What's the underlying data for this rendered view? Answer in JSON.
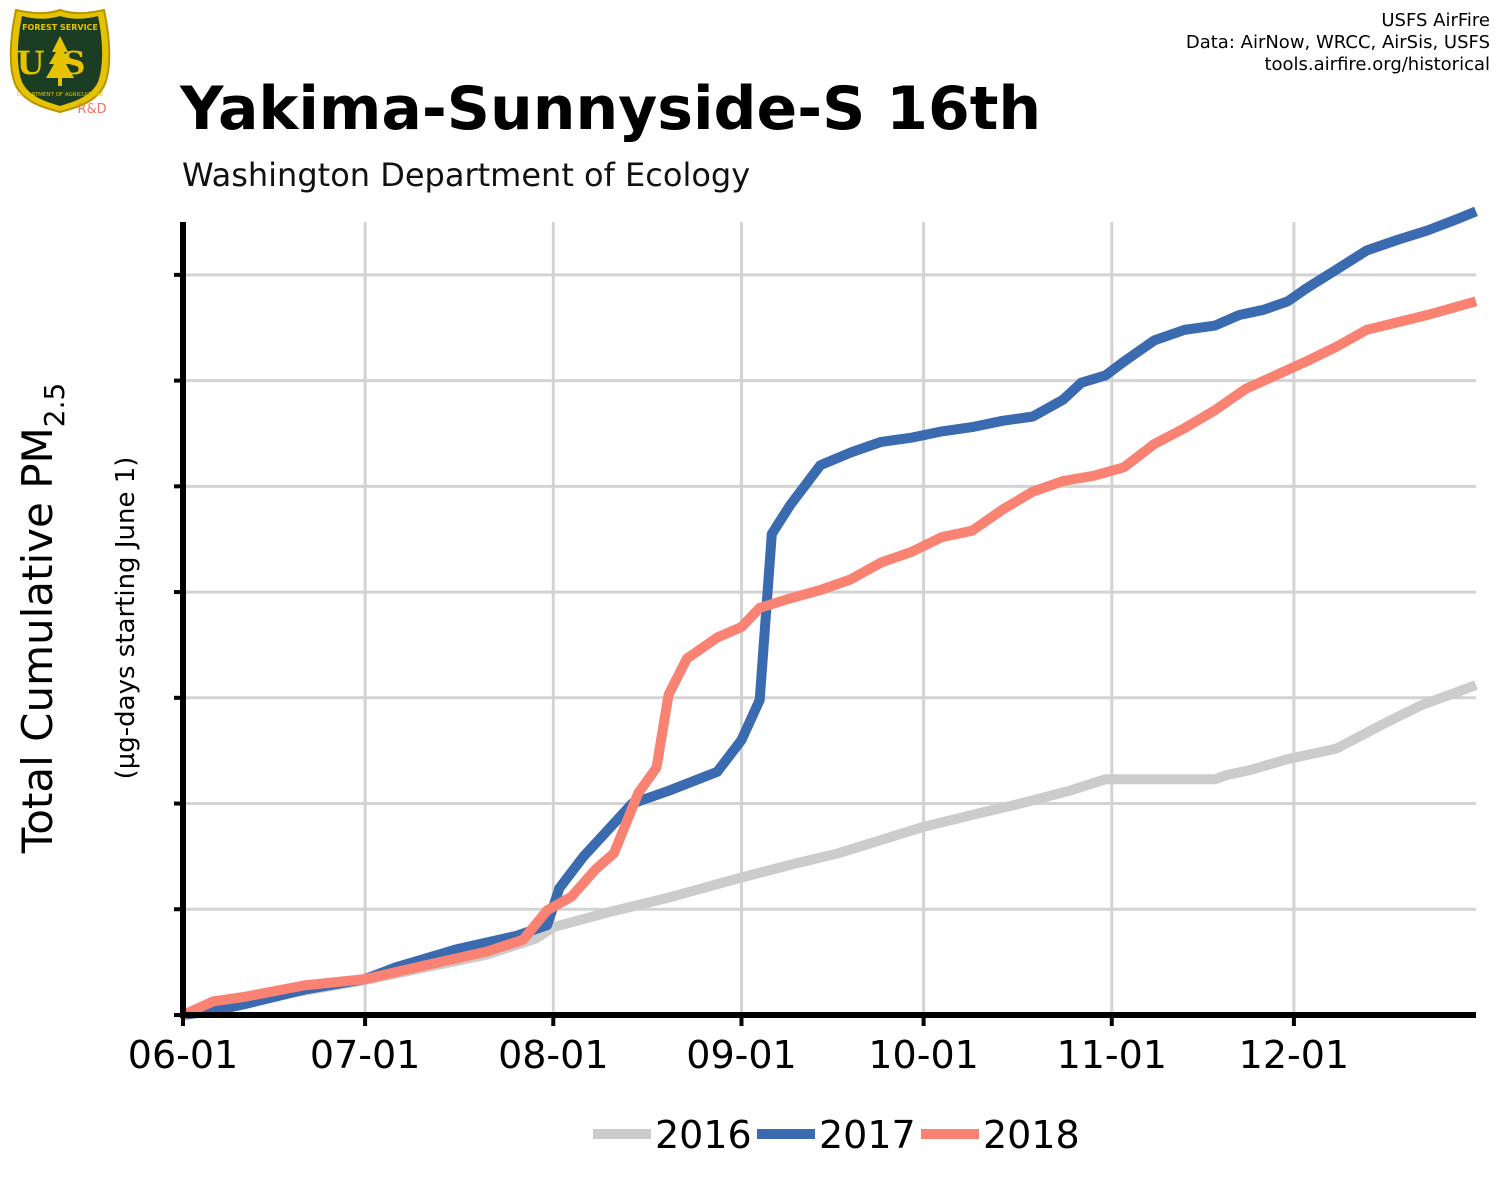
{
  "header": {
    "title": "Yakima-Sunnyside-S 16th",
    "subtitle": "Washington Department of Ecology",
    "credits": [
      "USFS AirFire",
      "Data: AirNow, WRCC, AirSis, USFS",
      "tools.airfire.org/historical"
    ],
    "logo": {
      "top_text": "FOREST SERVICE",
      "letters": "US",
      "bottom_text": "DEPARTMENT OF AGRICULTURE",
      "tag": "R&D"
    }
  },
  "colors": {
    "2016": "#cccccc",
    "2017": "#3a6ab0",
    "2018": "#f98273",
    "logo_shield": "#1a3d24",
    "logo_gold": "#e6c200",
    "logo_tag": "#f4736b"
  },
  "chart_data": {
    "type": "line",
    "ylabel": "Total Cumulative PM",
    "ylabel_sub": "2.5",
    "ylabel2": "(µg-days starting June 1)",
    "x_tick_labels": [
      "06-01",
      "07-01",
      "08-01",
      "09-01",
      "10-01",
      "11-01",
      "12-01"
    ],
    "x_tick_days": [
      0,
      30,
      61,
      92,
      122,
      153,
      183
    ],
    "xlim": [
      0,
      213
    ],
    "ylim": [
      0,
      7.5
    ],
    "y_ticks": [
      0,
      1,
      2,
      3,
      4,
      5,
      6,
      7
    ],
    "y_tick_labels_shown": false,
    "grid": true,
    "legend_position": "bottom",
    "series": [
      {
        "name": "2016",
        "x": [
          0,
          3,
          8,
          15,
          22,
          30,
          40,
          50,
          58,
          61,
          70,
          80,
          92,
          100,
          108,
          122,
          132,
          138,
          146,
          152,
          160,
          170,
          172,
          176,
          182,
          190,
          198,
          204,
          213
        ],
        "y": [
          0,
          0.07,
          0.15,
          0.18,
          0.25,
          0.33,
          0.45,
          0.57,
          0.72,
          0.83,
          0.97,
          1.11,
          1.3,
          1.42,
          1.53,
          1.78,
          1.92,
          2.0,
          2.12,
          2.23,
          2.23,
          2.23,
          2.27,
          2.32,
          2.42,
          2.52,
          2.76,
          2.93,
          3.12
        ]
      },
      {
        "name": "2017",
        "x": [
          0,
          5,
          10,
          20,
          30,
          35,
          45,
          55,
          60,
          62,
          66,
          70,
          74,
          80,
          88,
          92,
          95,
          97,
          100,
          105,
          110,
          115,
          120,
          125,
          130,
          135,
          140,
          145,
          148,
          152,
          155,
          160,
          165,
          170,
          174,
          178,
          182,
          185,
          190,
          195,
          200,
          205,
          210,
          213
        ],
        "y": [
          0,
          0.04,
          0.1,
          0.24,
          0.34,
          0.45,
          0.62,
          0.75,
          0.85,
          1.2,
          1.5,
          1.75,
          2.0,
          2.12,
          2.3,
          2.6,
          2.98,
          4.55,
          4.82,
          5.2,
          5.32,
          5.42,
          5.46,
          5.52,
          5.56,
          5.62,
          5.66,
          5.82,
          5.98,
          6.05,
          6.18,
          6.38,
          6.48,
          6.52,
          6.62,
          6.67,
          6.75,
          6.87,
          7.05,
          7.23,
          7.33,
          7.42,
          7.53,
          7.6
        ]
      },
      {
        "name": "2018",
        "x": [
          0,
          5,
          10,
          20,
          30,
          40,
          50,
          56,
          60,
          64,
          68,
          71,
          75,
          78,
          80,
          83,
          88,
          92,
          95,
          100,
          105,
          110,
          115,
          120,
          125,
          130,
          135,
          140,
          145,
          150,
          155,
          160,
          165,
          170,
          175,
          180,
          185,
          190,
          195,
          200,
          205,
          213
        ],
        "y": [
          0,
          0.13,
          0.17,
          0.28,
          0.34,
          0.47,
          0.6,
          0.71,
          0.99,
          1.12,
          1.38,
          1.53,
          2.1,
          2.34,
          3.03,
          3.37,
          3.57,
          3.67,
          3.85,
          3.94,
          4.02,
          4.12,
          4.28,
          4.38,
          4.52,
          4.58,
          4.78,
          4.95,
          5.05,
          5.1,
          5.18,
          5.4,
          5.55,
          5.72,
          5.92,
          6.05,
          6.18,
          6.32,
          6.48,
          6.55,
          6.62,
          6.75
        ]
      }
    ]
  }
}
